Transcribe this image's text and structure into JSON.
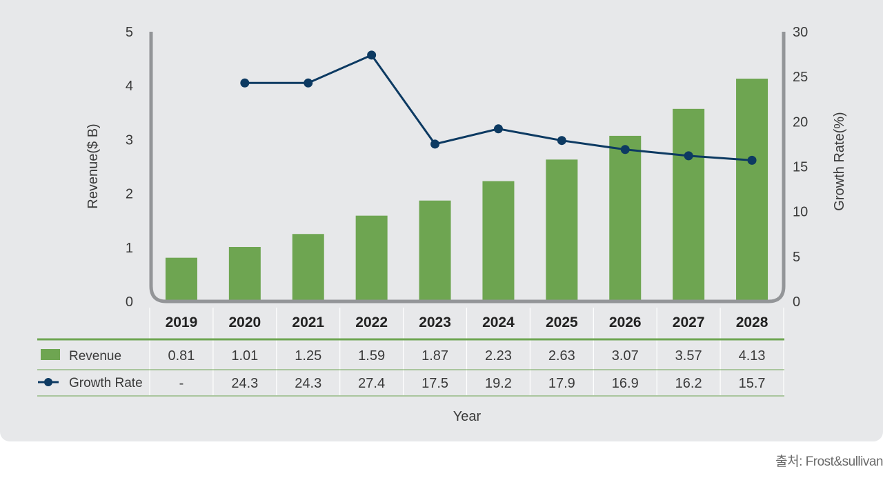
{
  "chart_data": {
    "type": "bar",
    "categories": [
      "2019",
      "2020",
      "2021",
      "2022",
      "2023",
      "2024",
      "2025",
      "2026",
      "2027",
      "2028"
    ],
    "series": [
      {
        "name": "Revenue",
        "kind": "bar",
        "axis": "left",
        "values": [
          0.81,
          1.01,
          1.25,
          1.59,
          1.87,
          2.23,
          2.63,
          3.07,
          3.57,
          4.13
        ],
        "labels": [
          "0.81",
          "1.01",
          "1.25",
          "1.59",
          "1.87",
          "2.23",
          "2.63",
          "3.07",
          "3.57",
          "4.13"
        ]
      },
      {
        "name": "Growth Rate",
        "kind": "line",
        "axis": "right",
        "values": [
          null,
          24.3,
          24.3,
          27.4,
          17.5,
          19.2,
          17.9,
          16.9,
          16.2,
          15.7
        ],
        "labels": [
          "-",
          "24.3",
          "24.3",
          "27.4",
          "17.5",
          "19.2",
          "17.9",
          "16.9",
          "16.2",
          "15.7"
        ]
      }
    ],
    "y_left": {
      "label": "Revenue($ B)",
      "min": 0,
      "max": 5,
      "ticks": [
        "0",
        "1",
        "2",
        "3",
        "4",
        "5"
      ]
    },
    "y_right": {
      "label": "Growth Rate(%)",
      "min": 0,
      "max": 30,
      "ticks": [
        "0",
        "5",
        "10",
        "15",
        "20",
        "25",
        "30"
      ]
    },
    "xlabel": "Year"
  },
  "colors": {
    "bar": "#6ea551",
    "line": "#0d3a62",
    "axis": "#939598",
    "table_line": "#6ea551",
    "text": "#3a3a3a"
  },
  "source": "출처: Frost&sullivan"
}
